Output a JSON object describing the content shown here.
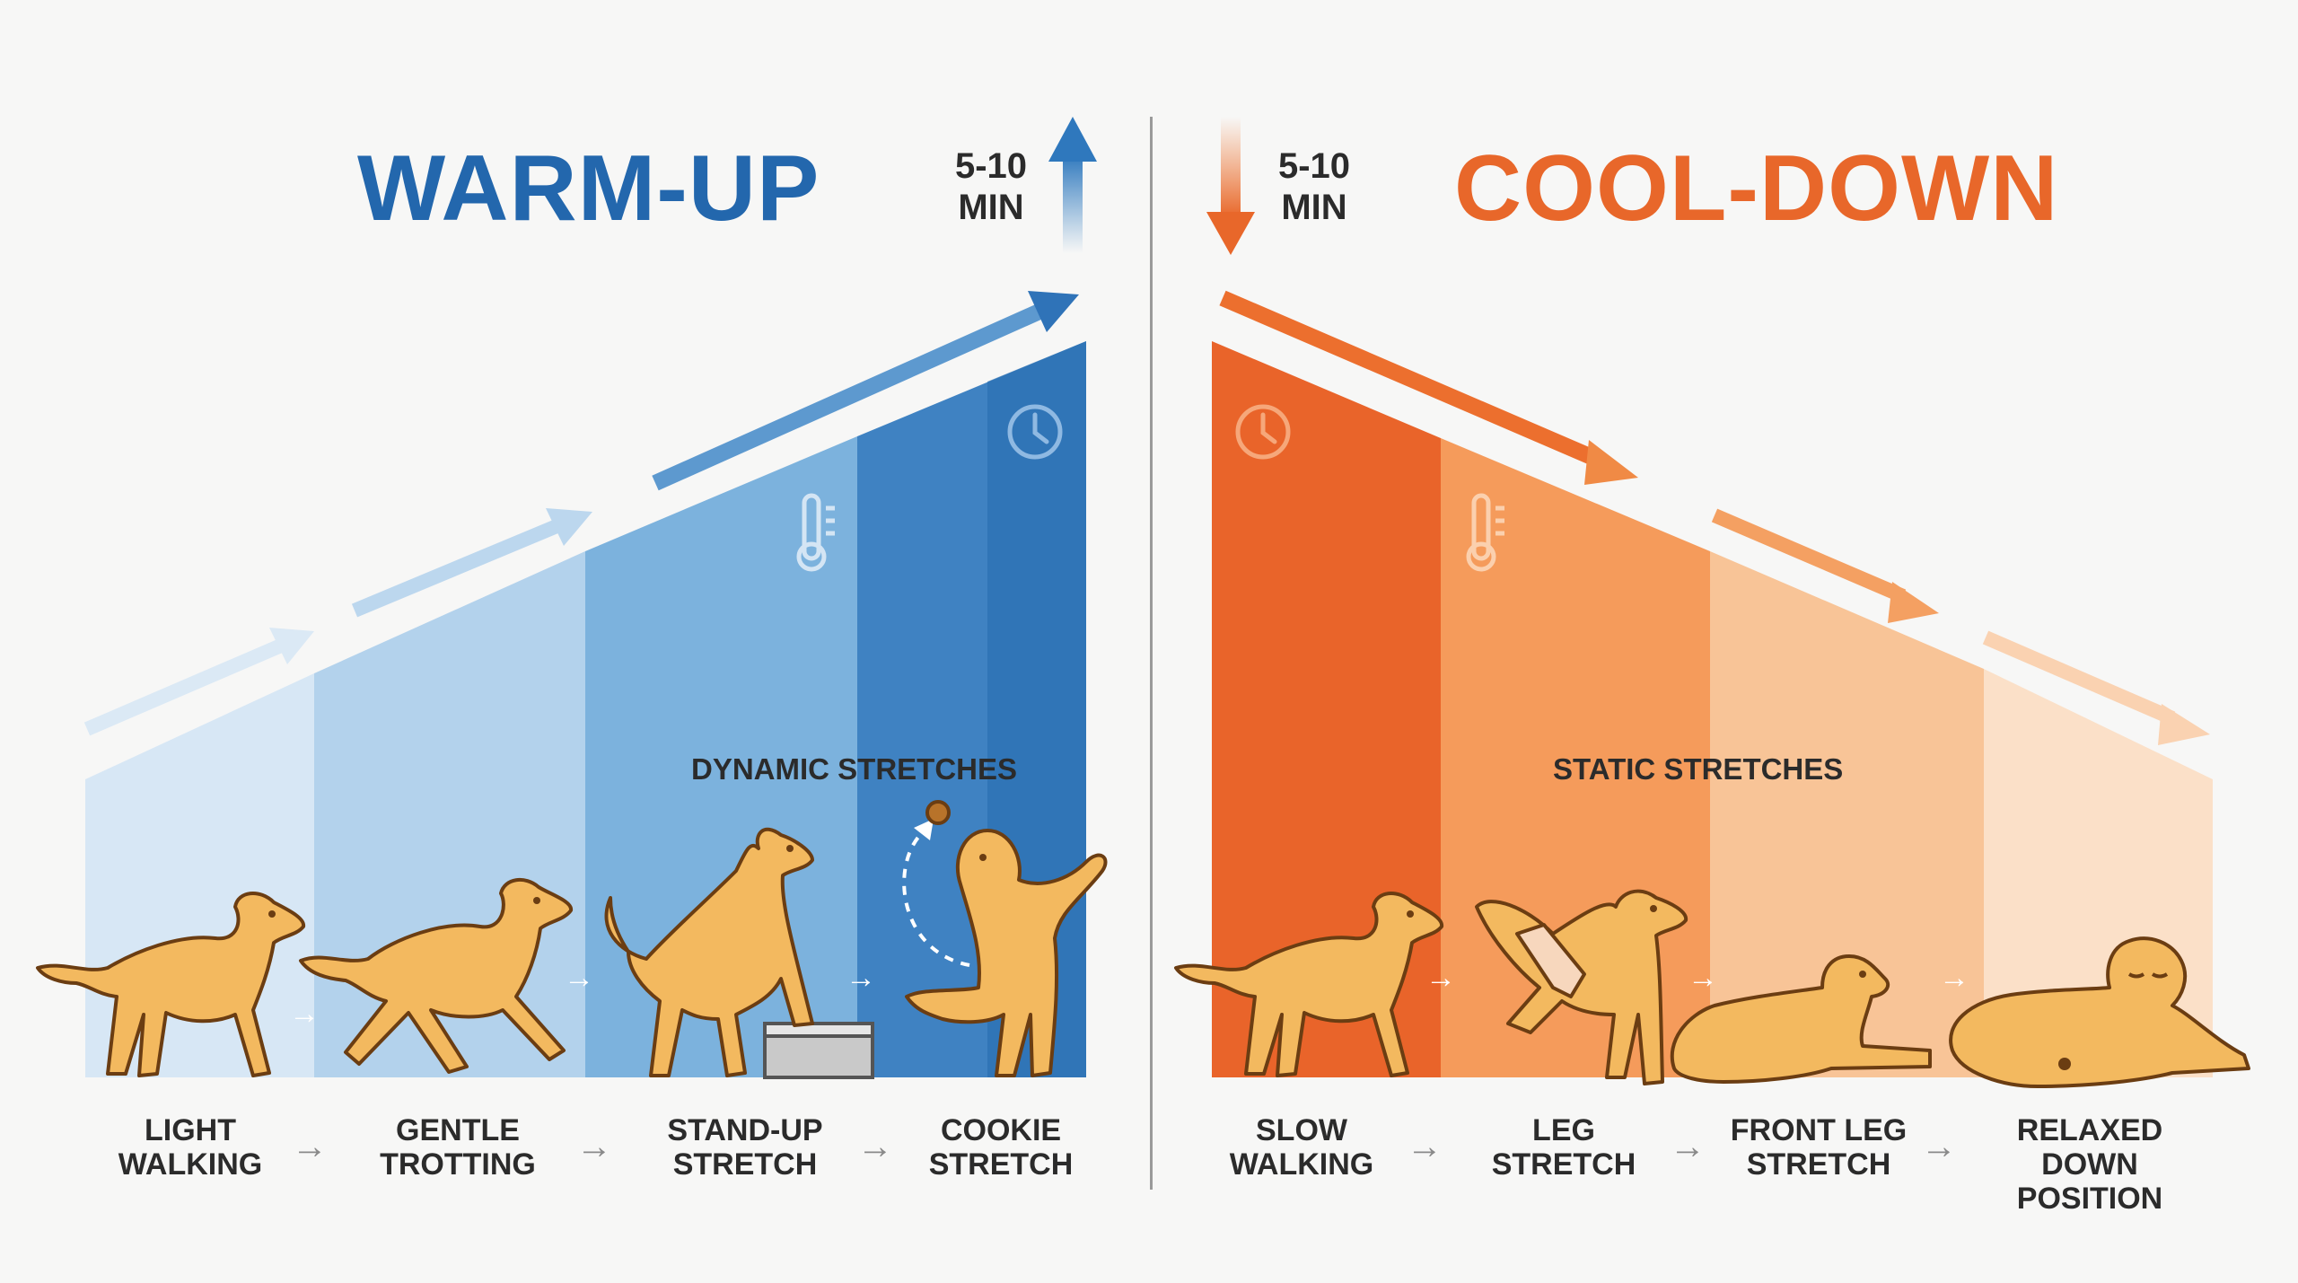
{
  "warmup": {
    "title": "WARM-UP",
    "duration_line1": "5-10",
    "duration_line2": "MIN",
    "phase_label": "DYNAMIC STRETCHES",
    "direction": "up",
    "accent_color": "#2367ad",
    "icons": [
      "thermometer-icon",
      "clock-icon",
      "up-arrow-icon"
    ],
    "steps": [
      {
        "line1": "LIGHT",
        "line2": "WALKING"
      },
      {
        "line1": "GENTLE",
        "line2": "TROTTING"
      },
      {
        "line1": "STAND-UP",
        "line2": "STRETCH"
      },
      {
        "line1": "COOKIE",
        "line2": "STRETCH"
      }
    ]
  },
  "cooldown": {
    "title": "COOL-DOWN",
    "duration_line1": "5-10",
    "duration_line2": "MIN",
    "phase_label": "STATIC STRETCHES",
    "direction": "down",
    "accent_color": "#e8672a",
    "icons": [
      "down-arrow-icon",
      "clock-icon",
      "thermometer-icon"
    ],
    "steps": [
      {
        "line1": "SLOW",
        "line2": "WALKING"
      },
      {
        "line1": "LEG",
        "line2": "STRETCH"
      },
      {
        "line1": "FRONT LEG",
        "line2": "STRETCH"
      },
      {
        "line1": "RELAXED DOWN",
        "line2": "POSITION"
      }
    ]
  },
  "arrow_glyph": "→"
}
